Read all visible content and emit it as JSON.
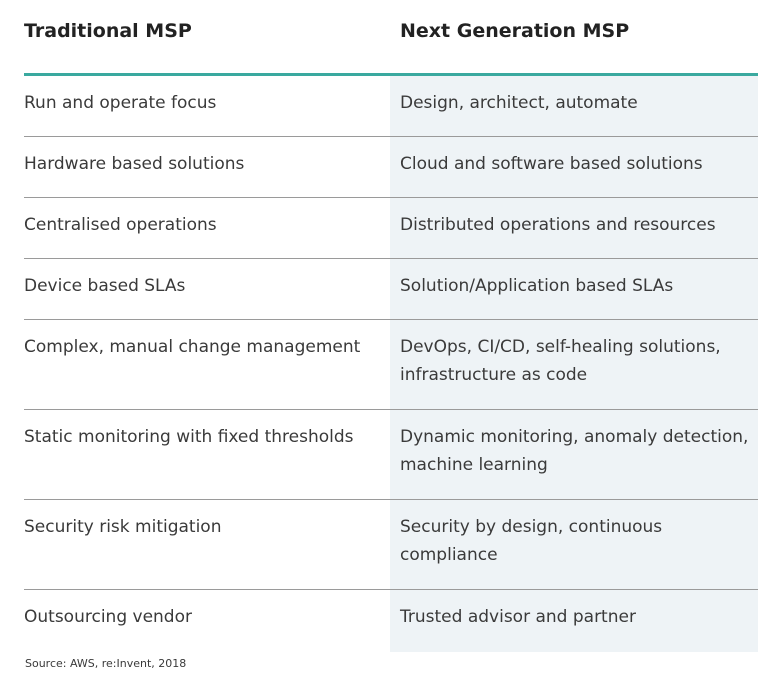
{
  "table": {
    "headers": [
      "Traditional MSP",
      "Next Generation MSP"
    ],
    "rows": [
      {
        "traditional": "Run and operate focus",
        "next_gen": "Design, architect, automate"
      },
      {
        "traditional": "Hardware based solutions",
        "next_gen": "Cloud and software based solutions"
      },
      {
        "traditional": "Centralised operations",
        "next_gen": "Distributed operations and resources"
      },
      {
        "traditional": "Device based SLAs",
        "next_gen": "Solution/Application based SLAs"
      },
      {
        "traditional": "Complex, manual change management",
        "next_gen": "DevOps, CI/CD, self-healing solutions, infrastructure as code"
      },
      {
        "traditional": "Static monitoring with fixed thresholds",
        "next_gen": "Dynamic monitoring, anomaly detection, machine learning"
      },
      {
        "traditional": "Security risk mitigation",
        "next_gen": "Security by design, continuous compliance"
      },
      {
        "traditional": "Outsourcing vendor",
        "next_gen": "Trusted advisor and partner"
      }
    ]
  },
  "source": "Source: AWS, re:Invent, 2018",
  "colors": {
    "header_rule": "#3aa99f",
    "highlight_column": "#eef3f6",
    "row_divider": "#9a9a9a"
  }
}
